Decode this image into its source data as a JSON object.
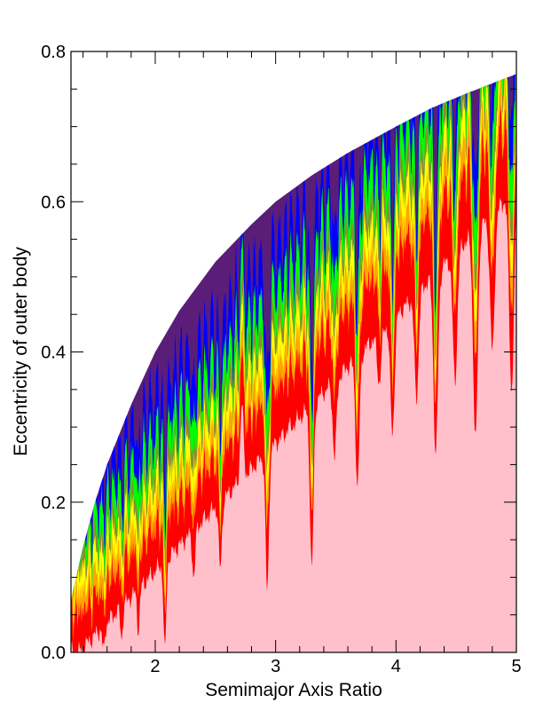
{
  "chart_data": {
    "type": "area",
    "xlabel": "Semimajor Axis Ratio",
    "ylabel": "Eccentricity of outer body",
    "xlim": [
      1.3,
      5.0
    ],
    "ylim": [
      0.0,
      0.8
    ],
    "x_ticks": [
      {
        "value": 2,
        "label": "2"
      },
      {
        "value": 3,
        "label": "3"
      },
      {
        "value": 4,
        "label": "4"
      },
      {
        "value": 5,
        "label": "5"
      }
    ],
    "y_ticks": [
      {
        "value": 0.0,
        "label": "0.0"
      },
      {
        "value": 0.2,
        "label": "0.2"
      },
      {
        "value": 0.4,
        "label": "0.4"
      },
      {
        "value": 0.6,
        "label": "0.6"
      },
      {
        "value": 0.8,
        "label": "0.8"
      }
    ],
    "grid": false,
    "colors": {
      "stable": "#ffc0cb",
      "red": "#ff0000",
      "orange": "#ffa500",
      "yellow": "#ffff00",
      "olive": "#8c8c32",
      "green": "#00ff00",
      "blue": "#0000ff",
      "unstable": "#5a1e78"
    },
    "boundary_curve": {
      "x": [
        1.3,
        1.4,
        1.5,
        1.6,
        1.8,
        2.0,
        2.2,
        2.5,
        2.8,
        3.0,
        3.3,
        3.6,
        4.0,
        4.3,
        4.6,
        5.0
      ],
      "y": [
        0.07,
        0.14,
        0.2,
        0.25,
        0.33,
        0.4,
        0.455,
        0.52,
        0.57,
        0.6,
        0.635,
        0.665,
        0.7,
        0.725,
        0.745,
        0.77
      ]
    },
    "stable_spikes": [
      {
        "x": 1.57,
        "e": 0.0
      },
      {
        "x": 1.72,
        "e": 0.02
      },
      {
        "x": 1.86,
        "e": 0.03
      },
      {
        "x": 2.08,
        "e": 0.0
      },
      {
        "x": 2.32,
        "e": 0.1
      },
      {
        "x": 2.54,
        "e": 0.11
      },
      {
        "x": 2.72,
        "e": 0.33
      },
      {
        "x": 2.93,
        "e": 0.08
      },
      {
        "x": 3.12,
        "e": 0.3
      },
      {
        "x": 3.3,
        "e": 0.11
      },
      {
        "x": 3.49,
        "e": 0.26
      },
      {
        "x": 3.68,
        "e": 0.22
      },
      {
        "x": 3.86,
        "e": 0.36
      },
      {
        "x": 3.97,
        "e": 0.29
      },
      {
        "x": 4.17,
        "e": 0.34
      },
      {
        "x": 4.33,
        "e": 0.26
      },
      {
        "x": 4.49,
        "e": 0.36
      },
      {
        "x": 4.66,
        "e": 0.28
      },
      {
        "x": 4.8,
        "e": 0.4
      },
      {
        "x": 4.96,
        "e": 0.35
      }
    ]
  }
}
